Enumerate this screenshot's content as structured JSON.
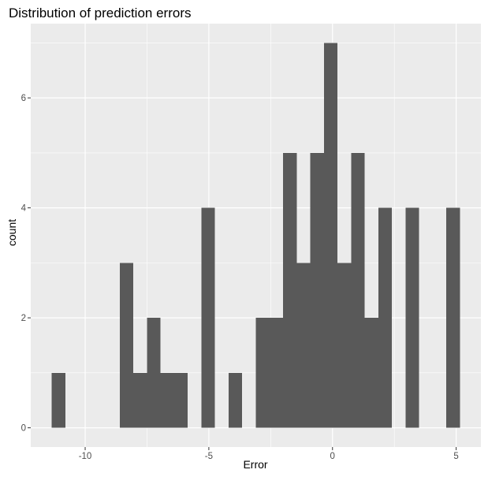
{
  "chart_data": {
    "type": "bar",
    "title": "Distribution of prediction errors",
    "xlabel": "Error",
    "ylabel": "count",
    "bin_width": 0.55,
    "bins": [
      {
        "x0": -11.35,
        "count": 1
      },
      {
        "x0": -8.6,
        "count": 3
      },
      {
        "x0": -8.05,
        "count": 1
      },
      {
        "x0": -7.5,
        "count": 2
      },
      {
        "x0": -6.95,
        "count": 1
      },
      {
        "x0": -6.4,
        "count": 1
      },
      {
        "x0": -5.3,
        "count": 4
      },
      {
        "x0": -4.2,
        "count": 1
      },
      {
        "x0": -3.1,
        "count": 2
      },
      {
        "x0": -2.55,
        "count": 2
      },
      {
        "x0": -2.0,
        "count": 5
      },
      {
        "x0": -1.45,
        "count": 3
      },
      {
        "x0": -0.9,
        "count": 5
      },
      {
        "x0": -0.35,
        "count": 7
      },
      {
        "x0": 0.2,
        "count": 3
      },
      {
        "x0": 0.75,
        "count": 5
      },
      {
        "x0": 1.3,
        "count": 2
      },
      {
        "x0": 1.85,
        "count": 4
      },
      {
        "x0": 2.95,
        "count": 4
      },
      {
        "x0": 4.6,
        "count": 4
      }
    ],
    "xlim": [
      -12.2,
      6.0
    ],
    "ylim": [
      -0.35,
      7.35
    ],
    "x_ticks": [
      -10,
      -5,
      0,
      5
    ],
    "x_tick_labels": [
      "-10",
      "-5",
      "0",
      "5"
    ],
    "y_ticks": [
      0,
      2,
      4,
      6
    ],
    "y_tick_labels": [
      "0",
      "2",
      "4",
      "6"
    ],
    "grid": true,
    "legend": "none",
    "colors": {
      "panel": "#ebebeb",
      "grid": "#ffffff",
      "bar": "#595959",
      "tick": "#333333",
      "tick_label": "#4d4d4d"
    }
  }
}
